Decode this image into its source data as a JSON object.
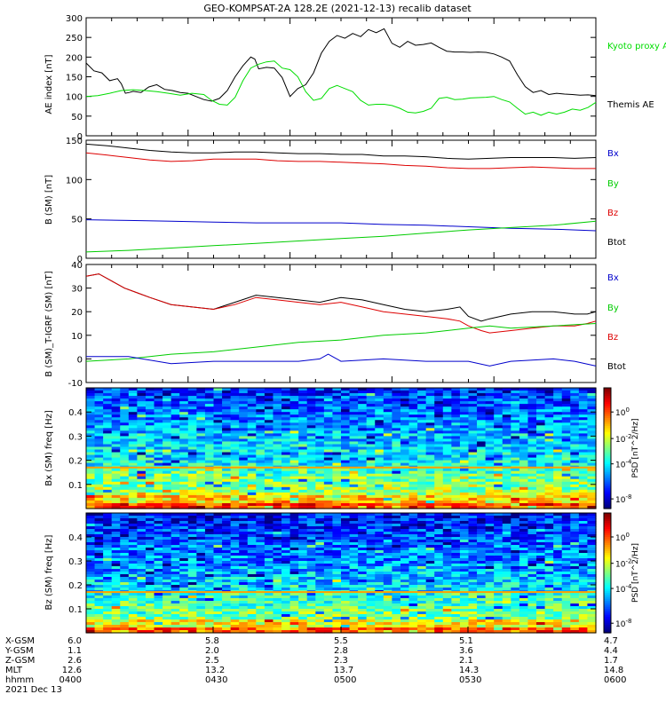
{
  "title": "GEO-KOMPSAT-2A 128.2E (2021-12-13) recalib dataset",
  "chart_data": [
    {
      "type": "line",
      "id": "ae",
      "ylabel": "AE index [nT]",
      "yticks": [
        "0",
        "50",
        "100",
        "150",
        "200",
        "250",
        "300"
      ],
      "ylim": [
        0,
        300
      ],
      "xlim": [
        0,
        130
      ],
      "legend": [
        {
          "text": "Kyoto proxy AE",
          "color": "#00dd00"
        },
        {
          "text": "Themis AE",
          "color": "#000000"
        }
      ],
      "series": [
        {
          "name": "Themis AE",
          "color": "#000000",
          "x": [
            0,
            2,
            4,
            6,
            8,
            9,
            10,
            11,
            12,
            14,
            16,
            18,
            20,
            22,
            24,
            26,
            28,
            30,
            32,
            34,
            36,
            38,
            40,
            42,
            43,
            44,
            46,
            48,
            50,
            52,
            54,
            56,
            58,
            60,
            62,
            64,
            66,
            68,
            70,
            72,
            74,
            76,
            78,
            80,
            82,
            84,
            86,
            88,
            90,
            92,
            94,
            96,
            98,
            100,
            102,
            104,
            106,
            108,
            110,
            112,
            114,
            116,
            118,
            120,
            122,
            124,
            126,
            128,
            130
          ],
          "y": [
            185,
            165,
            160,
            140,
            145,
            132,
            108,
            110,
            113,
            110,
            124,
            130,
            118,
            115,
            110,
            108,
            100,
            92,
            88,
            95,
            115,
            150,
            178,
            200,
            195,
            170,
            174,
            172,
            148,
            100,
            120,
            130,
            160,
            210,
            240,
            255,
            248,
            260,
            252,
            270,
            262,
            272,
            235,
            225,
            240,
            230,
            232,
            236,
            225,
            215,
            213,
            213,
            212,
            213,
            212,
            208,
            200,
            190,
            155,
            125,
            110,
            115,
            105,
            108,
            106,
            105,
            103,
            104,
            102
          ]
        },
        {
          "name": "Kyoto proxy AE",
          "color": "#00dd00",
          "x": [
            0,
            3,
            6,
            9,
            12,
            15,
            18,
            21,
            24,
            27,
            30,
            32,
            34,
            36,
            38,
            40,
            42,
            44,
            46,
            48,
            50,
            52,
            54,
            56,
            58,
            60,
            62,
            64,
            66,
            68,
            70,
            72,
            74,
            76,
            78,
            80,
            82,
            84,
            86,
            88,
            90,
            92,
            94,
            96,
            98,
            100,
            102,
            104,
            106,
            108,
            110,
            112,
            114,
            116,
            118,
            120,
            122,
            124,
            126,
            128,
            130
          ],
          "y": [
            100,
            102,
            108,
            115,
            117,
            115,
            112,
            108,
            103,
            108,
            105,
            90,
            80,
            78,
            98,
            140,
            172,
            182,
            188,
            190,
            172,
            168,
            150,
            112,
            90,
            95,
            120,
            128,
            120,
            112,
            90,
            78,
            80,
            80,
            77,
            70,
            60,
            58,
            62,
            70,
            95,
            98,
            92,
            93,
            96,
            97,
            98,
            100,
            92,
            86,
            70,
            55,
            60,
            52,
            60,
            55,
            60,
            68,
            65,
            72,
            85
          ]
        }
      ]
    },
    {
      "type": "line",
      "id": "bsm",
      "ylabel": "B (SM) [nT]",
      "yticks": [
        "0",
        "50",
        "100",
        "150"
      ],
      "ylim": [
        0,
        150
      ],
      "xlim": [
        0,
        120
      ],
      "legend": [
        {
          "text": "Bx",
          "color": "#0000cc"
        },
        {
          "text": "By",
          "color": "#00cc00"
        },
        {
          "text": "Bz",
          "color": "#dd0000"
        },
        {
          "text": "Btot",
          "color": "#000000"
        }
      ],
      "series": [
        {
          "name": "Btot",
          "color": "#000000",
          "x": [
            0,
            5,
            10,
            15,
            20,
            25,
            30,
            35,
            40,
            45,
            50,
            55,
            60,
            65,
            70,
            75,
            80,
            85,
            90,
            95,
            100,
            105,
            110,
            115,
            120
          ],
          "y": [
            145,
            143,
            140,
            137,
            135,
            134,
            134,
            135,
            135,
            134,
            133,
            133,
            132,
            132,
            130,
            130,
            129,
            127,
            126,
            127,
            128,
            128,
            128,
            127,
            128
          ]
        },
        {
          "name": "Bz",
          "color": "#dd0000",
          "x": [
            0,
            5,
            10,
            15,
            20,
            25,
            30,
            35,
            40,
            45,
            50,
            55,
            60,
            65,
            70,
            75,
            80,
            85,
            90,
            95,
            100,
            105,
            110,
            115,
            120
          ],
          "y": [
            134,
            131,
            128,
            125,
            123,
            124,
            126,
            126,
            126,
            124,
            123,
            123,
            122,
            121,
            120,
            118,
            117,
            115,
            114,
            114,
            115,
            116,
            115,
            114,
            114
          ]
        },
        {
          "name": "Bx",
          "color": "#0000cc",
          "x": [
            0,
            10,
            20,
            30,
            40,
            50,
            60,
            70,
            80,
            90,
            100,
            110,
            120
          ],
          "y": [
            49,
            48,
            47,
            46,
            45,
            45,
            45,
            43,
            42,
            40,
            38,
            37,
            35
          ]
        },
        {
          "name": "By",
          "color": "#00cc00",
          "x": [
            0,
            10,
            20,
            30,
            40,
            50,
            60,
            70,
            80,
            90,
            100,
            110,
            120
          ],
          "y": [
            8,
            10,
            13,
            16,
            19,
            22,
            25,
            28,
            32,
            36,
            39,
            42,
            47
          ]
        }
      ]
    },
    {
      "type": "line",
      "id": "bdelta",
      "ylabel": "B (SM)_T-IGRF (SM) [nT]",
      "yticks": [
        "-10",
        "0",
        "10",
        "20",
        "30",
        "40"
      ],
      "ylim": [
        -10,
        40
      ],
      "xlim": [
        0,
        120
      ],
      "legend": [
        {
          "text": "Bx",
          "color": "#0000cc"
        },
        {
          "text": "By",
          "color": "#00cc00"
        },
        {
          "text": "Bz",
          "color": "#dd0000"
        },
        {
          "text": "Btot",
          "color": "#000000"
        }
      ],
      "series": [
        {
          "name": "Btot",
          "color": "#000000",
          "x": [
            0,
            3,
            6,
            9,
            12,
            15,
            20,
            25,
            30,
            35,
            40,
            45,
            50,
            55,
            60,
            65,
            70,
            75,
            80,
            85,
            88,
            90,
            93,
            95,
            100,
            105,
            110,
            115,
            118,
            120
          ],
          "y": [
            35,
            36,
            33,
            30,
            28,
            26,
            23,
            22,
            21,
            24,
            27,
            26,
            25,
            24,
            26,
            25,
            23,
            21,
            20,
            21,
            22,
            18,
            16,
            17,
            19,
            20,
            20,
            19,
            19,
            20
          ]
        },
        {
          "name": "Bz",
          "color": "#dd0000",
          "x": [
            0,
            3,
            6,
            9,
            12,
            15,
            20,
            25,
            30,
            35,
            40,
            45,
            50,
            55,
            60,
            65,
            70,
            75,
            80,
            85,
            88,
            90,
            93,
            95,
            100,
            105,
            110,
            115,
            118,
            120
          ],
          "y": [
            35,
            36,
            33,
            30,
            28,
            26,
            23,
            22,
            21,
            23,
            26,
            25,
            24,
            23,
            24,
            22,
            20,
            19,
            18,
            17,
            16,
            14,
            12,
            11,
            12,
            13,
            14,
            14,
            15,
            16
          ]
        },
        {
          "name": "By",
          "color": "#00cc00",
          "x": [
            0,
            10,
            20,
            30,
            40,
            50,
            60,
            70,
            80,
            90,
            95,
            100,
            110,
            120
          ],
          "y": [
            -1,
            0,
            2,
            3,
            5,
            7,
            8,
            10,
            11,
            13,
            14,
            13,
            14,
            15
          ]
        },
        {
          "name": "Bx",
          "color": "#0000cc",
          "x": [
            0,
            10,
            20,
            30,
            40,
            50,
            55,
            57,
            60,
            70,
            80,
            90,
            95,
            100,
            110,
            115,
            120
          ],
          "y": [
            1,
            1,
            -2,
            -1,
            -1,
            -1,
            0,
            2,
            -1,
            0,
            -1,
            -1,
            -3,
            -1,
            0,
            -1,
            -3
          ]
        }
      ]
    },
    {
      "type": "heatmap",
      "id": "bx_spec",
      "ylabel": "Bx (SM) freq [Hz]",
      "yticks": [
        "0.1",
        "0.2",
        "0.3",
        "0.4"
      ],
      "ylim": [
        0,
        0.5
      ],
      "colorbar": {
        "label": "PSD [nT^2/Hz]",
        "ticks": [
          "10^0",
          "10^-2",
          "10^-4",
          "10^-8"
        ]
      }
    },
    {
      "type": "heatmap",
      "id": "bz_spec",
      "ylabel": "Bz (SM) freq [Hz]",
      "yticks": [
        "0.1",
        "0.2",
        "0.3",
        "0.4"
      ],
      "ylim": [
        0,
        0.5
      ],
      "colorbar": {
        "label": "PSD [nT^2/Hz]",
        "ticks": [
          "10^0",
          "10^-2",
          "10^-4",
          "10^-8"
        ]
      }
    }
  ],
  "ephemeris": {
    "labels": [
      "X-GSM",
      "Y-GSM",
      "Z-GSM",
      "MLT",
      "hhmm",
      "2021 Dec 13"
    ],
    "columns": [
      [
        "6.0",
        "1.1",
        "2.6",
        "12.6",
        "0400"
      ],
      [
        "5.8",
        "2.0",
        "2.5",
        "13.2",
        "0430"
      ],
      [
        "5.5",
        "2.8",
        "2.3",
        "13.7",
        "0500"
      ],
      [
        "5.1",
        "3.6",
        "2.1",
        "14.3",
        "0530"
      ],
      [
        "4.7",
        "4.4",
        "1.7",
        "14.8",
        "0600"
      ]
    ]
  }
}
